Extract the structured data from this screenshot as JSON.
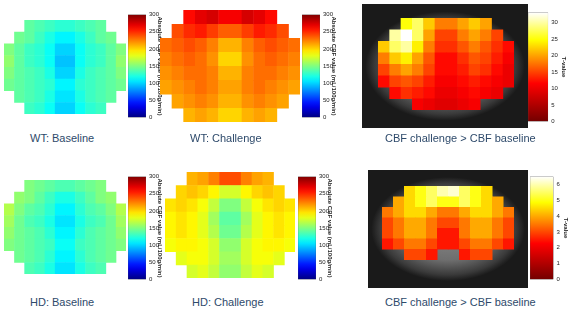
{
  "chart_data": [
    {
      "type": "heatmap",
      "title": "WT: Baseline",
      "color": "jet",
      "tick_labels": false,
      "cells": [
        [
          null,
          null,
          140,
          135,
          130,
          125,
          125,
          130,
          135,
          140,
          null,
          null
        ],
        [
          null,
          145,
          140,
          130,
          120,
          110,
          110,
          120,
          130,
          140,
          145,
          null
        ],
        [
          150,
          140,
          130,
          125,
          115,
          100,
          100,
          115,
          125,
          130,
          140,
          150
        ],
        [
          155,
          140,
          130,
          125,
          115,
          95,
          95,
          115,
          125,
          130,
          140,
          155
        ],
        [
          150,
          140,
          135,
          130,
          120,
          100,
          100,
          120,
          130,
          135,
          140,
          150
        ],
        [
          145,
          140,
          135,
          130,
          125,
          110,
          110,
          125,
          130,
          135,
          140,
          145
        ],
        [
          null,
          140,
          135,
          130,
          120,
          105,
          105,
          120,
          130,
          135,
          140,
          null
        ],
        [
          null,
          null,
          130,
          125,
          115,
          100,
          100,
          115,
          125,
          130,
          null,
          null
        ]
      ],
      "colorbar": {
        "label": "Absolute CBF value (mL/100g/min)",
        "range": [
          0,
          300
        ],
        "ticks": [
          0,
          50,
          100,
          150,
          200,
          250,
          300
        ]
      }
    },
    {
      "type": "heatmap",
      "title": "WT: Challenge",
      "color": "jet",
      "tick_labels": false,
      "cells": [
        [
          null,
          null,
          260,
          270,
          275,
          265,
          265,
          275,
          270,
          260,
          null,
          null
        ],
        [
          null,
          240,
          250,
          255,
          245,
          235,
          235,
          245,
          255,
          250,
          240,
          null
        ],
        [
          230,
          235,
          240,
          235,
          225,
          210,
          210,
          225,
          235,
          240,
          235,
          230
        ],
        [
          225,
          230,
          235,
          230,
          220,
          200,
          200,
          220,
          230,
          235,
          230,
          225
        ],
        [
          220,
          225,
          230,
          230,
          225,
          210,
          210,
          225,
          230,
          230,
          225,
          220
        ],
        [
          215,
          220,
          225,
          230,
          225,
          215,
          215,
          225,
          230,
          225,
          220,
          215
        ],
        [
          null,
          215,
          220,
          225,
          220,
          210,
          210,
          220,
          225,
          220,
          215,
          null
        ],
        [
          null,
          null,
          210,
          215,
          210,
          200,
          200,
          210,
          215,
          210,
          null,
          null
        ]
      ],
      "colorbar": {
        "label": "Absolute CBF value (mL/100g/min)",
        "range": [
          0,
          300
        ],
        "ticks": [
          0,
          50,
          100,
          150,
          200,
          250,
          300
        ]
      }
    },
    {
      "type": "heatmap",
      "title": "CBF challenge > CBF baseline",
      "color": "hot",
      "tick_labels": false,
      "cells": [
        [
          null,
          null,
          25,
          28,
          22,
          18,
          18,
          20,
          22,
          20,
          null,
          null
        ],
        [
          null,
          30,
          33,
          28,
          20,
          15,
          15,
          18,
          20,
          18,
          15,
          null
        ],
        [
          22,
          28,
          30,
          24,
          18,
          14,
          14,
          16,
          18,
          16,
          14,
          12
        ],
        [
          18,
          22,
          24,
          20,
          16,
          12,
          12,
          14,
          16,
          15,
          13,
          11
        ],
        [
          15,
          18,
          20,
          18,
          15,
          12,
          12,
          13,
          15,
          14,
          12,
          10
        ],
        [
          12,
          15,
          16,
          15,
          13,
          11,
          11,
          12,
          13,
          12,
          11,
          10
        ],
        [
          null,
          12,
          14,
          13,
          12,
          10,
          10,
          11,
          12,
          11,
          10,
          null
        ],
        [
          null,
          null,
          null,
          11,
          10,
          9,
          9,
          10,
          11,
          null,
          null,
          null
        ]
      ],
      "colorbar": {
        "label": "T-value",
        "range": [
          0,
          33
        ],
        "ticks": [
          0,
          5,
          10,
          15,
          20,
          25,
          30
        ]
      }
    },
    {
      "type": "heatmap",
      "title": "HD: Baseline",
      "color": "jet",
      "tick_labels": false,
      "cells": [
        [
          null,
          null,
          150,
          145,
          140,
          135,
          135,
          140,
          145,
          150,
          null,
          null
        ],
        [
          null,
          155,
          150,
          140,
          130,
          120,
          120,
          130,
          140,
          150,
          155,
          null
        ],
        [
          165,
          150,
          140,
          135,
          125,
          110,
          110,
          125,
          135,
          140,
          150,
          165
        ],
        [
          160,
          145,
          135,
          130,
          120,
          105,
          105,
          120,
          130,
          135,
          145,
          160
        ],
        [
          155,
          145,
          140,
          135,
          125,
          110,
          110,
          125,
          135,
          140,
          145,
          155
        ],
        [
          150,
          145,
          140,
          135,
          130,
          115,
          115,
          130,
          135,
          140,
          145,
          150
        ],
        [
          null,
          145,
          140,
          135,
          125,
          110,
          110,
          125,
          135,
          140,
          145,
          null
        ],
        [
          null,
          null,
          135,
          130,
          120,
          105,
          105,
          120,
          130,
          135,
          null,
          null
        ]
      ],
      "colorbar": {
        "label": "Absolute CBF value (mL/100g/min)",
        "range": [
          0,
          300
        ],
        "ticks": [
          0,
          50,
          100,
          150,
          200,
          250,
          300
        ]
      }
    },
    {
      "type": "heatmap",
      "title": "HD: Challenge",
      "color": "jet",
      "tick_labels": false,
      "cells": [
        [
          null,
          null,
          210,
          215,
          225,
          240,
          240,
          225,
          215,
          210,
          null,
          null
        ],
        [
          null,
          200,
          205,
          200,
          190,
          175,
          175,
          190,
          200,
          205,
          200,
          null
        ],
        [
          195,
          200,
          195,
          185,
          170,
          150,
          150,
          170,
          185,
          195,
          200,
          195
        ],
        [
          190,
          195,
          190,
          180,
          160,
          140,
          140,
          160,
          180,
          190,
          195,
          190
        ],
        [
          190,
          195,
          190,
          180,
          165,
          145,
          145,
          165,
          180,
          190,
          195,
          190
        ],
        [
          185,
          190,
          190,
          185,
          175,
          155,
          155,
          175,
          185,
          190,
          190,
          185
        ],
        [
          null,
          180,
          185,
          185,
          175,
          160,
          160,
          175,
          185,
          185,
          180,
          null
        ],
        [
          null,
          null,
          175,
          180,
          170,
          155,
          155,
          170,
          180,
          175,
          null,
          null
        ]
      ],
      "colorbar": {
        "label": "Absolute CBF value (mL/100g/min)",
        "range": [
          0,
          300
        ],
        "ticks": [
          0,
          50,
          100,
          150,
          200,
          250,
          300
        ]
      }
    },
    {
      "type": "heatmap",
      "title": "CBF challenge > CBF baseline",
      "color": "hot",
      "tick_labels": false,
      "cells": [
        [
          null,
          null,
          4.5,
          5,
          5.5,
          6,
          6.2,
          5.5,
          5,
          4.5,
          null,
          null
        ],
        [
          null,
          4,
          4.5,
          5,
          5.5,
          5,
          5,
          5.5,
          5,
          4.5,
          4,
          null
        ],
        [
          3.5,
          4,
          4.5,
          4.5,
          4,
          3.5,
          3.5,
          4,
          4.5,
          4.5,
          4,
          3.5
        ],
        [
          3,
          3.5,
          4,
          4,
          3.5,
          3,
          3,
          3.5,
          4,
          4,
          3.5,
          3
        ],
        [
          3,
          3.5,
          4,
          4,
          3.5,
          2.5,
          2.5,
          3.5,
          4,
          4,
          3.5,
          3
        ],
        [
          2.5,
          3,
          3.5,
          3.5,
          3,
          2.5,
          2.5,
          3,
          3.5,
          3.5,
          3,
          2.5
        ],
        [
          null,
          null,
          3,
          3,
          2.5,
          null,
          null,
          2.5,
          3,
          3,
          null,
          null
        ],
        [
          null,
          null,
          null,
          null,
          null,
          null,
          null,
          null,
          null,
          null,
          null,
          null
        ]
      ],
      "colorbar": {
        "label": "T-value",
        "range": [
          0,
          6.5
        ],
        "ticks": [
          0,
          1,
          2,
          3,
          4,
          5,
          6
        ]
      }
    }
  ]
}
